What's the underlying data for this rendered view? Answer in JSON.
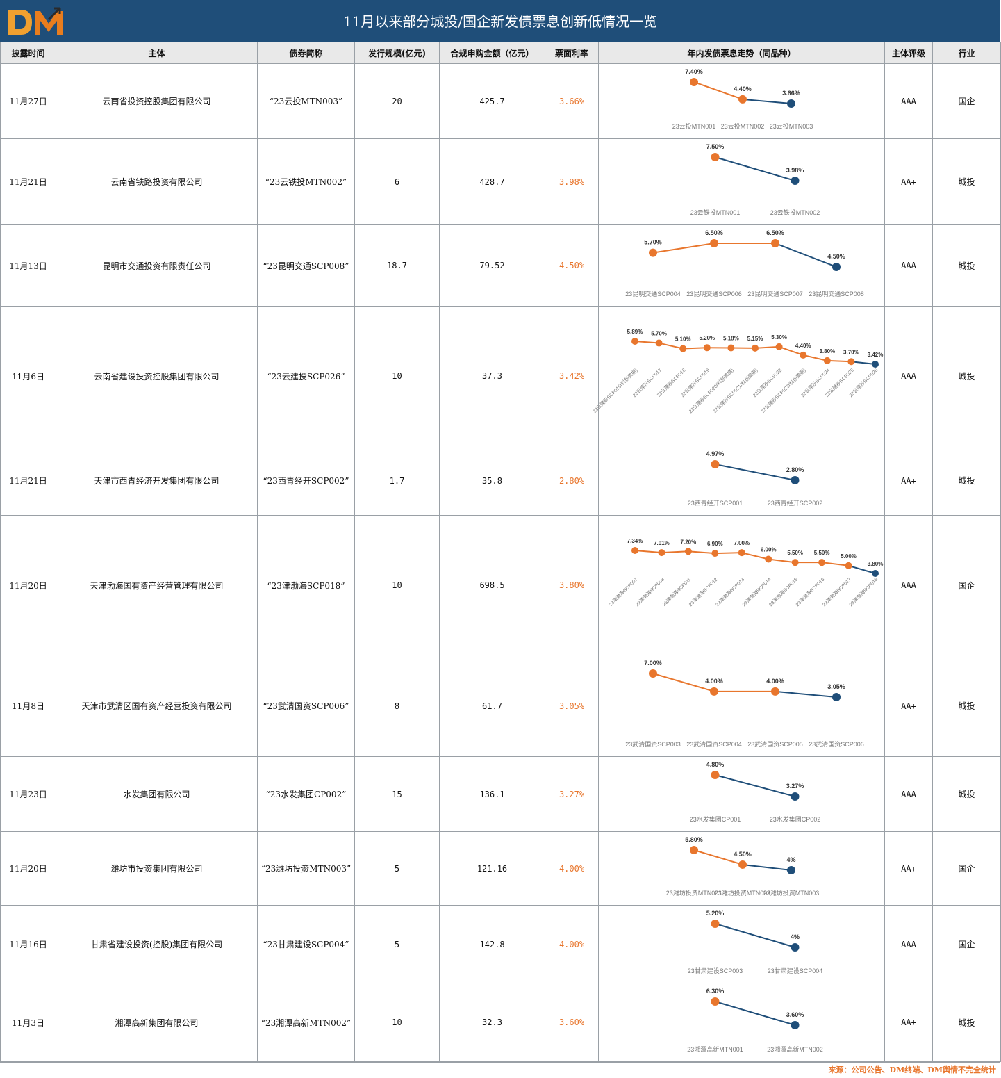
{
  "title": "11月以来部分城投/国企新发债票息创新低情况一览",
  "logo": {
    "text_d": "D",
    "text_m": "M",
    "color_d": "#f0a030",
    "color_m": "#e87d1e",
    "arrow_color": "#2a2a2a"
  },
  "colors": {
    "header_bg": "#1f4e79",
    "orange": "#e8762d",
    "navy": "#1f4e79",
    "axis_label": "#777777"
  },
  "columns": [
    "披露时间",
    "主体",
    "债券简称",
    "发行规模(亿元)",
    "合规申购金额（亿元）",
    "票面利率",
    "年内发债票息走势（同品种）",
    "主体评级",
    "行业"
  ],
  "rows": [
    {
      "date": "11月27日",
      "issuer": "云南省投资控股集团有限公司",
      "bond": "“23云投MTN003”",
      "size": "20",
      "amount": "425.7",
      "rate": "3.66%",
      "rating": "AAA",
      "industry": "国企",
      "trend": {
        "labels": [
          "23云投MTN001",
          "23云投MTN002",
          "23云投MTN003"
        ],
        "values": [
          7.4,
          4.4,
          3.66
        ],
        "value_labels": [
          "7.40%",
          "4.40%",
          "3.66%"
        ]
      }
    },
    {
      "date": "11月21日",
      "issuer": "云南省铁路投资有限公司",
      "bond": "“23云铁投MTN002”",
      "size": "6",
      "amount": "428.7",
      "rate": "3.98%",
      "rating": "AA+",
      "industry": "城投",
      "trend": {
        "labels": [
          "23云铁投MTN001",
          "23云铁投MTN002"
        ],
        "values": [
          7.5,
          3.98
        ],
        "value_labels": [
          "7.50%",
          "3.98%"
        ]
      }
    },
    {
      "date": "11月13日",
      "issuer": "昆明市交通投资有限责任公司",
      "bond": "“23昆明交通SCP008”",
      "size": "18.7",
      "amount": "79.52",
      "rate": "4.50%",
      "rating": "AAA",
      "industry": "城投",
      "trend": {
        "labels": [
          "23昆明交通SCP004",
          "23昆明交通SCP006",
          "23昆明交通SCP007",
          "23昆明交通SCP008"
        ],
        "values": [
          5.7,
          6.5,
          6.5,
          4.5
        ],
        "value_labels": [
          "5.70%",
          "6.50%",
          "6.50%",
          "4.50%"
        ]
      }
    },
    {
      "date": "11月6日",
      "issuer": "云南省建设投资控股集团有限公司",
      "bond": "“23云建投SCP026”",
      "size": "10",
      "amount": "37.3",
      "rate": "3.42%",
      "rating": "AAA",
      "industry": "城投",
      "trend": {
        "labels": [
          "23云建投SCP015(科创票据)",
          "23云建投SCP017",
          "23云建投SCP018",
          "23云建投SCP019",
          "23云建投SCP020(科创票据)",
          "23云建投SCP021(科创票据)",
          "23云建投SCP022",
          "23云建投SCP023(科创票据)",
          "23云建投SCP024",
          "23云建投SCP025",
          "23云建投SCP026"
        ],
        "values": [
          5.89,
          5.7,
          5.1,
          5.2,
          5.18,
          5.15,
          5.3,
          4.4,
          3.8,
          3.7,
          3.42
        ],
        "value_labels": [
          "5.89%",
          "5.70%",
          "5.10%",
          "5.20%",
          "5.18%",
          "5.15%",
          "5.30%",
          "4.40%",
          "3.80%",
          "3.70%",
          "3.42%"
        ]
      }
    },
    {
      "date": "11月21日",
      "issuer": "天津市西青经济开发集团有限公司",
      "bond": "“23西青经开SCP002”",
      "size": "1.7",
      "amount": "35.8",
      "rate": "2.80%",
      "rating": "AA+",
      "industry": "城投",
      "trend": {
        "labels": [
          "23西青经开SCP001",
          "23西青经开SCP002"
        ],
        "values": [
          4.97,
          2.8
        ],
        "value_labels": [
          "4.97%",
          "2.80%"
        ]
      }
    },
    {
      "date": "11月20日",
      "issuer": "天津渤海国有资产经营管理有限公司",
      "bond": "“23津渤海SCP018”",
      "size": "10",
      "amount": "698.5",
      "rate": "3.80%",
      "rating": "AAA",
      "industry": "国企",
      "trend": {
        "labels": [
          "23津渤海SCP007",
          "23津渤海SCP008",
          "23津渤海SCP011",
          "23津渤海SCP012",
          "23津渤海SCP013",
          "23津渤海SCP014",
          "23津渤海SCP015",
          "23津渤海SCP016",
          "23津渤海SCP017",
          "23津渤海SCP018"
        ],
        "values": [
          7.34,
          7.01,
          7.2,
          6.9,
          7.0,
          6.0,
          5.5,
          5.5,
          5.0,
          3.8
        ],
        "value_labels": [
          "7.34%",
          "7.01%",
          "7.20%",
          "6.90%",
          "7.00%",
          "6.00%",
          "5.50%",
          "5.50%",
          "5.00%",
          "3.80%"
        ]
      }
    },
    {
      "date": "11月8日",
      "issuer": "天津市武清区国有资产经营投资有限公司",
      "bond": "“23武清国资SCP006”",
      "size": "8",
      "amount": "61.7",
      "rate": "3.05%",
      "rating": "AA+",
      "industry": "城投",
      "trend": {
        "labels": [
          "23武清国资SCP003",
          "23武清国资SCP004",
          "23武清国资SCP005",
          "23武清国资SCP006"
        ],
        "values": [
          7.0,
          4.0,
          4.0,
          3.05
        ],
        "value_labels": [
          "7.00%",
          "4.00%",
          "4.00%",
          "3.05%"
        ]
      }
    },
    {
      "date": "11月23日",
      "issuer": "水发集团有限公司",
      "bond": "“23水发集团CP002”",
      "size": "15",
      "amount": "136.1",
      "rate": "3.27%",
      "rating": "AAA",
      "industry": "城投",
      "trend": {
        "labels": [
          "23水发集团CP001",
          "23水发集团CP002"
        ],
        "values": [
          4.8,
          3.27
        ],
        "value_labels": [
          "4.80%",
          "3.27%"
        ]
      }
    },
    {
      "date": "11月20日",
      "issuer": "潍坊市投资集团有限公司",
      "bond": "“23潍坊投资MTN003”",
      "size": "5",
      "amount": "121.16",
      "rate": "4.00%",
      "rating": "AA+",
      "industry": "国企",
      "trend": {
        "labels": [
          "23潍坊投资MTN001",
          "23潍坊投资MTN002",
          "23潍坊投资MTN003"
        ],
        "values": [
          5.8,
          4.5,
          4.0
        ],
        "value_labels": [
          "5.80%",
          "4.50%",
          "4%"
        ]
      }
    },
    {
      "date": "11月16日",
      "issuer": "甘肃省建设投资(控股)集团有限公司",
      "bond": "“23甘肃建设SCP004”",
      "size": "5",
      "amount": "142.8",
      "rate": "4.00%",
      "rating": "AAA",
      "industry": "国企",
      "trend": {
        "labels": [
          "23甘肃建设SCP003",
          "23甘肃建设SCP004"
        ],
        "values": [
          5.2,
          4.0
        ],
        "value_labels": [
          "5.20%",
          "4%"
        ]
      }
    },
    {
      "date": "11月3日",
      "issuer": "湘潭高新集团有限公司",
      "bond": "“23湘潭高新MTN002”",
      "size": "10",
      "amount": "32.3",
      "rate": "3.60%",
      "rating": "AA+",
      "industry": "城投",
      "trend": {
        "labels": [
          "23湘潭高新MTN001",
          "23湘潭高新MTN002"
        ],
        "values": [
          6.3,
          3.6
        ],
        "value_labels": [
          "6.30%",
          "3.60%"
        ]
      }
    }
  ],
  "footer": "来源：公司公告、DM终端、DM舆情不完全统计"
}
